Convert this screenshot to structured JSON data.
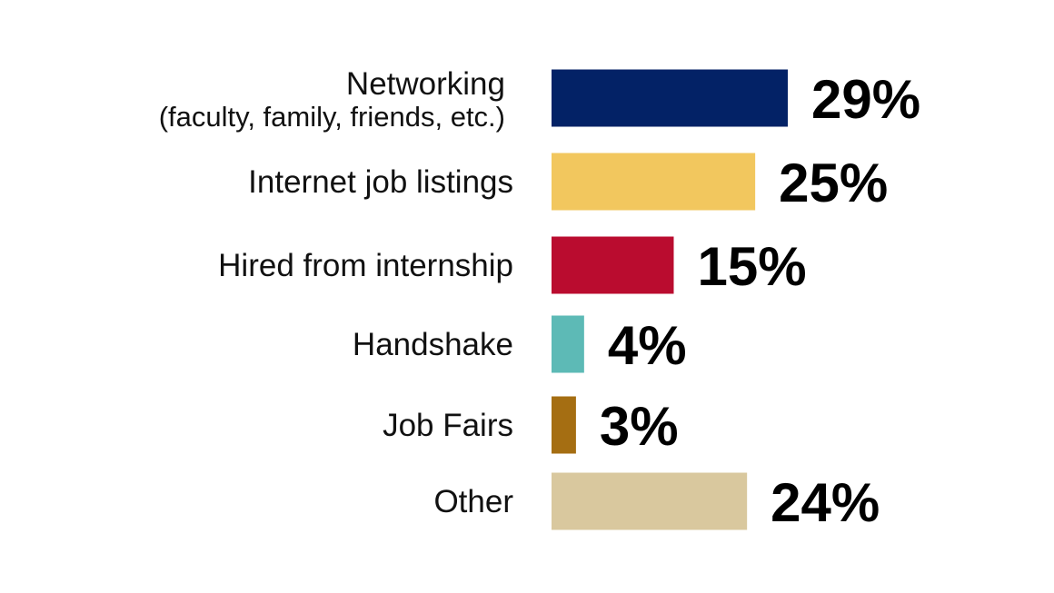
{
  "chart_data": {
    "type": "bar",
    "orientation": "horizontal",
    "title": "",
    "xlabel": "",
    "ylabel": "",
    "xlim": [
      0,
      29
    ],
    "grid": false,
    "legend": "none",
    "value_suffix": "%",
    "categories": [
      "Networking",
      "Internet job listings",
      "Hired from internship",
      "Handshake",
      "Job Fairs",
      "Other"
    ],
    "category_sublabels": [
      "(faculty, family, friends, etc.)",
      "",
      "",
      "",
      "",
      ""
    ],
    "values": [
      29,
      25,
      15,
      4,
      3,
      24
    ],
    "colors": [
      "#032266",
      "#F2C75E",
      "#BA0C2F",
      "#5DBAB6",
      "#A56E12",
      "#D9C89E"
    ]
  }
}
